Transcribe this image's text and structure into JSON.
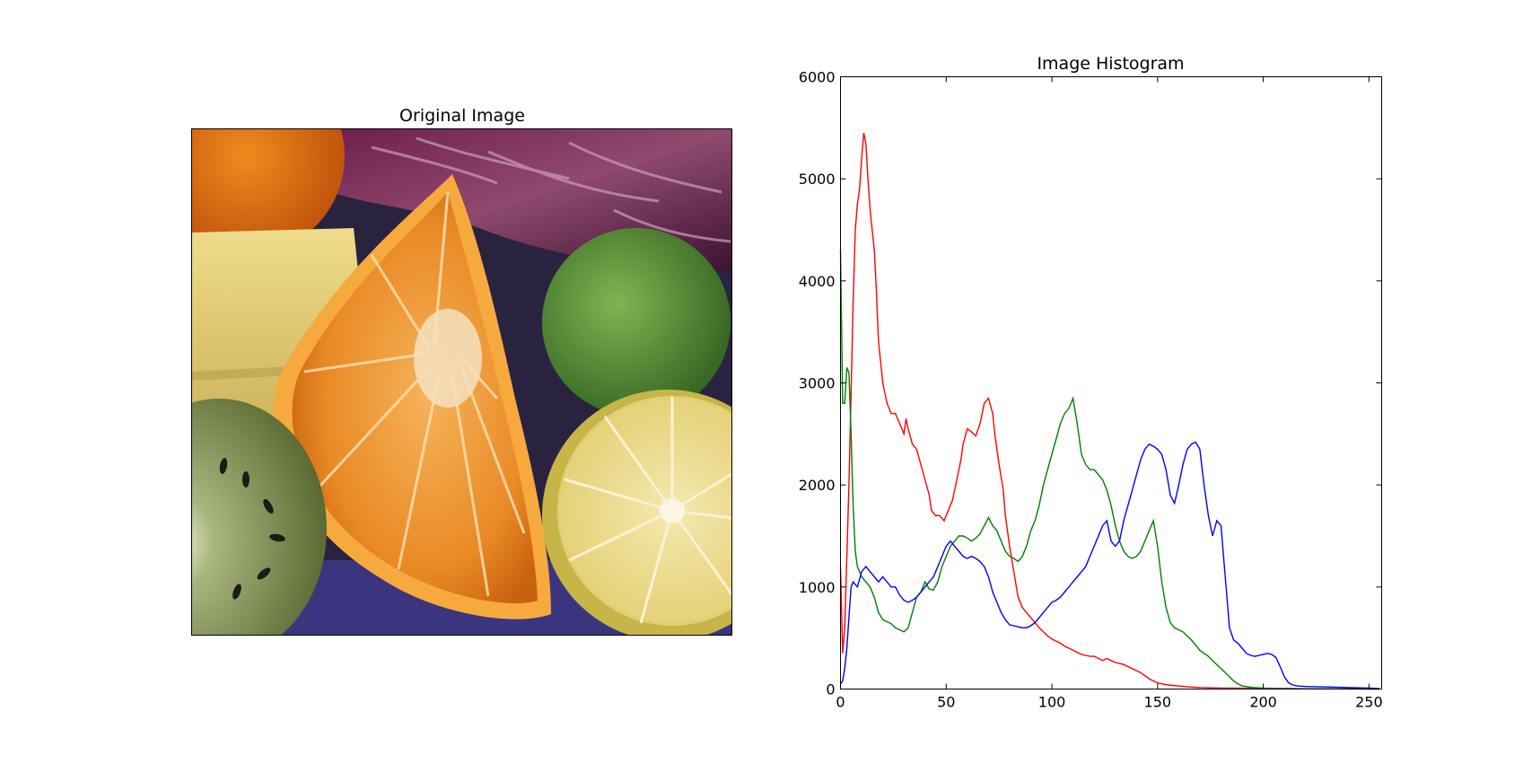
{
  "figure": {
    "image_panel": {
      "title": "Original Image",
      "content": "photograph of cut orange, lemon, lime, kiwi, banana and red cabbage"
    }
  },
  "chart_data": {
    "type": "line",
    "title": "Image Histogram",
    "xlabel": "",
    "ylabel": "",
    "xlim": [
      0,
      256
    ],
    "ylim": [
      0,
      6000
    ],
    "x_ticks": [
      "0",
      "50",
      "100",
      "150",
      "200",
      "250"
    ],
    "y_ticks": [
      "0",
      "1000",
      "2000",
      "3000",
      "4000",
      "5000",
      "6000"
    ],
    "grid": false,
    "series": [
      {
        "color": "#ff0000",
        "points": [
          [
            0,
            1200
          ],
          [
            1,
            350
          ],
          [
            2,
            600
          ],
          [
            3,
            1300
          ],
          [
            4,
            2000
          ],
          [
            5,
            2900
          ],
          [
            6,
            3800
          ],
          [
            7,
            4500
          ],
          [
            8,
            4750
          ],
          [
            9,
            4900
          ],
          [
            10,
            5200
          ],
          [
            11,
            5450
          ],
          [
            12,
            5350
          ],
          [
            13,
            5000
          ],
          [
            14,
            4700
          ],
          [
            15,
            4500
          ],
          [
            16,
            4300
          ],
          [
            17,
            3900
          ],
          [
            18,
            3400
          ],
          [
            19,
            3200
          ],
          [
            20,
            3000
          ],
          [
            22,
            2800
          ],
          [
            24,
            2700
          ],
          [
            26,
            2700
          ],
          [
            28,
            2600
          ],
          [
            30,
            2500
          ],
          [
            31,
            2650
          ],
          [
            32,
            2550
          ],
          [
            34,
            2400
          ],
          [
            36,
            2350
          ],
          [
            38,
            2200
          ],
          [
            40,
            2050
          ],
          [
            42,
            1900
          ],
          [
            43,
            1750
          ],
          [
            45,
            1700
          ],
          [
            47,
            1700
          ],
          [
            49,
            1650
          ],
          [
            51,
            1750
          ],
          [
            53,
            1850
          ],
          [
            55,
            2050
          ],
          [
            57,
            2250
          ],
          [
            58,
            2400
          ],
          [
            60,
            2550
          ],
          [
            62,
            2520
          ],
          [
            64,
            2480
          ],
          [
            66,
            2600
          ],
          [
            68,
            2800
          ],
          [
            70,
            2850
          ],
          [
            72,
            2700
          ],
          [
            73,
            2500
          ],
          [
            75,
            2200
          ],
          [
            77,
            1950
          ],
          [
            78,
            1700
          ],
          [
            80,
            1400
          ],
          [
            82,
            1150
          ],
          [
            84,
            900
          ],
          [
            86,
            800
          ],
          [
            88,
            750
          ],
          [
            90,
            700
          ],
          [
            92,
            650
          ],
          [
            94,
            600
          ],
          [
            96,
            560
          ],
          [
            98,
            520
          ],
          [
            100,
            490
          ],
          [
            102,
            470
          ],
          [
            104,
            450
          ],
          [
            106,
            420
          ],
          [
            108,
            400
          ],
          [
            110,
            380
          ],
          [
            112,
            360
          ],
          [
            114,
            340
          ],
          [
            116,
            330
          ],
          [
            118,
            320
          ],
          [
            120,
            320
          ],
          [
            122,
            300
          ],
          [
            124,
            280
          ],
          [
            126,
            300
          ],
          [
            128,
            280
          ],
          [
            130,
            260
          ],
          [
            132,
            250
          ],
          [
            134,
            240
          ],
          [
            136,
            220
          ],
          [
            138,
            200
          ],
          [
            140,
            180
          ],
          [
            142,
            160
          ],
          [
            144,
            130
          ],
          [
            146,
            100
          ],
          [
            148,
            80
          ],
          [
            150,
            60
          ],
          [
            152,
            50
          ],
          [
            155,
            40
          ],
          [
            160,
            30
          ],
          [
            165,
            20
          ],
          [
            170,
            15
          ],
          [
            180,
            10
          ],
          [
            190,
            8
          ],
          [
            200,
            5
          ],
          [
            210,
            5
          ],
          [
            220,
            3
          ],
          [
            230,
            3
          ],
          [
            240,
            2
          ],
          [
            255,
            0
          ]
        ]
      },
      {
        "color": "#007f00",
        "points": [
          [
            0,
            4300
          ],
          [
            1,
            2800
          ],
          [
            2,
            2800
          ],
          [
            3,
            3150
          ],
          [
            4,
            3100
          ],
          [
            5,
            2500
          ],
          [
            6,
            1800
          ],
          [
            7,
            1350
          ],
          [
            8,
            1200
          ],
          [
            10,
            1100
          ],
          [
            12,
            1050
          ],
          [
            14,
            1000
          ],
          [
            16,
            900
          ],
          [
            18,
            750
          ],
          [
            20,
            680
          ],
          [
            22,
            660
          ],
          [
            24,
            640
          ],
          [
            26,
            600
          ],
          [
            28,
            580
          ],
          [
            30,
            560
          ],
          [
            32,
            600
          ],
          [
            34,
            750
          ],
          [
            36,
            900
          ],
          [
            38,
            950
          ],
          [
            40,
            1050
          ],
          [
            42,
            980
          ],
          [
            44,
            970
          ],
          [
            46,
            1050
          ],
          [
            48,
            1200
          ],
          [
            50,
            1300
          ],
          [
            52,
            1400
          ],
          [
            54,
            1450
          ],
          [
            56,
            1500
          ],
          [
            58,
            1500
          ],
          [
            60,
            1480
          ],
          [
            62,
            1450
          ],
          [
            64,
            1480
          ],
          [
            66,
            1520
          ],
          [
            68,
            1600
          ],
          [
            70,
            1680
          ],
          [
            72,
            1600
          ],
          [
            74,
            1550
          ],
          [
            76,
            1450
          ],
          [
            78,
            1350
          ],
          [
            80,
            1300
          ],
          [
            82,
            1280
          ],
          [
            84,
            1250
          ],
          [
            86,
            1300
          ],
          [
            88,
            1400
          ],
          [
            90,
            1550
          ],
          [
            92,
            1650
          ],
          [
            94,
            1800
          ],
          [
            96,
            2000
          ],
          [
            98,
            2150
          ],
          [
            100,
            2300
          ],
          [
            102,
            2450
          ],
          [
            104,
            2600
          ],
          [
            106,
            2700
          ],
          [
            108,
            2750
          ],
          [
            110,
            2850
          ],
          [
            112,
            2600
          ],
          [
            114,
            2300
          ],
          [
            116,
            2200
          ],
          [
            118,
            2150
          ],
          [
            120,
            2150
          ],
          [
            122,
            2100
          ],
          [
            124,
            2050
          ],
          [
            126,
            1950
          ],
          [
            128,
            1800
          ],
          [
            130,
            1600
          ],
          [
            132,
            1450
          ],
          [
            134,
            1350
          ],
          [
            136,
            1300
          ],
          [
            138,
            1280
          ],
          [
            140,
            1300
          ],
          [
            142,
            1350
          ],
          [
            144,
            1450
          ],
          [
            146,
            1550
          ],
          [
            148,
            1650
          ],
          [
            150,
            1400
          ],
          [
            152,
            1050
          ],
          [
            154,
            800
          ],
          [
            156,
            650
          ],
          [
            158,
            600
          ],
          [
            160,
            580
          ],
          [
            162,
            560
          ],
          [
            164,
            520
          ],
          [
            166,
            480
          ],
          [
            168,
            430
          ],
          [
            170,
            380
          ],
          [
            172,
            350
          ],
          [
            174,
            320
          ],
          [
            176,
            280
          ],
          [
            178,
            240
          ],
          [
            180,
            200
          ],
          [
            182,
            160
          ],
          [
            184,
            120
          ],
          [
            186,
            80
          ],
          [
            188,
            50
          ],
          [
            190,
            30
          ],
          [
            195,
            15
          ],
          [
            200,
            10
          ],
          [
            210,
            5
          ],
          [
            220,
            3
          ],
          [
            240,
            2
          ],
          [
            255,
            0
          ]
        ]
      },
      {
        "color": "#0000ff",
        "points": [
          [
            0,
            50
          ],
          [
            1,
            80
          ],
          [
            2,
            200
          ],
          [
            3,
            400
          ],
          [
            4,
            700
          ],
          [
            5,
            1000
          ],
          [
            6,
            1050
          ],
          [
            8,
            1000
          ],
          [
            10,
            1150
          ],
          [
            12,
            1200
          ],
          [
            14,
            1150
          ],
          [
            16,
            1100
          ],
          [
            18,
            1050
          ],
          [
            20,
            1100
          ],
          [
            22,
            1050
          ],
          [
            24,
            1000
          ],
          [
            26,
            1000
          ],
          [
            28,
            920
          ],
          [
            30,
            870
          ],
          [
            32,
            850
          ],
          [
            34,
            870
          ],
          [
            36,
            900
          ],
          [
            38,
            950
          ],
          [
            40,
            1000
          ],
          [
            42,
            1050
          ],
          [
            44,
            1100
          ],
          [
            46,
            1200
          ],
          [
            48,
            1300
          ],
          [
            50,
            1400
          ],
          [
            52,
            1450
          ],
          [
            54,
            1400
          ],
          [
            56,
            1350
          ],
          [
            58,
            1300
          ],
          [
            60,
            1280
          ],
          [
            62,
            1300
          ],
          [
            64,
            1280
          ],
          [
            66,
            1250
          ],
          [
            68,
            1200
          ],
          [
            70,
            1100
          ],
          [
            72,
            950
          ],
          [
            74,
            850
          ],
          [
            76,
            750
          ],
          [
            78,
            680
          ],
          [
            80,
            630
          ],
          [
            82,
            620
          ],
          [
            84,
            610
          ],
          [
            86,
            600
          ],
          [
            88,
            600
          ],
          [
            90,
            620
          ],
          [
            92,
            650
          ],
          [
            94,
            700
          ],
          [
            96,
            750
          ],
          [
            98,
            800
          ],
          [
            100,
            850
          ],
          [
            102,
            870
          ],
          [
            104,
            900
          ],
          [
            106,
            950
          ],
          [
            108,
            1000
          ],
          [
            110,
            1050
          ],
          [
            112,
            1100
          ],
          [
            114,
            1150
          ],
          [
            116,
            1200
          ],
          [
            118,
            1300
          ],
          [
            120,
            1400
          ],
          [
            122,
            1500
          ],
          [
            124,
            1600
          ],
          [
            126,
            1650
          ],
          [
            128,
            1450
          ],
          [
            130,
            1400
          ],
          [
            132,
            1450
          ],
          [
            134,
            1650
          ],
          [
            136,
            1800
          ],
          [
            138,
            1950
          ],
          [
            140,
            2100
          ],
          [
            142,
            2250
          ],
          [
            144,
            2350
          ],
          [
            146,
            2400
          ],
          [
            148,
            2380
          ],
          [
            150,
            2350
          ],
          [
            152,
            2300
          ],
          [
            154,
            2150
          ],
          [
            156,
            1900
          ],
          [
            158,
            1820
          ],
          [
            160,
            2000
          ],
          [
            162,
            2200
          ],
          [
            164,
            2350
          ],
          [
            166,
            2400
          ],
          [
            168,
            2420
          ],
          [
            170,
            2350
          ],
          [
            172,
            2000
          ],
          [
            174,
            1700
          ],
          [
            176,
            1500
          ],
          [
            178,
            1650
          ],
          [
            180,
            1600
          ],
          [
            182,
            1100
          ],
          [
            184,
            600
          ],
          [
            186,
            480
          ],
          [
            188,
            450
          ],
          [
            190,
            400
          ],
          [
            192,
            350
          ],
          [
            194,
            330
          ],
          [
            196,
            320
          ],
          [
            198,
            330
          ],
          [
            200,
            340
          ],
          [
            202,
            350
          ],
          [
            204,
            340
          ],
          [
            206,
            310
          ],
          [
            208,
            220
          ],
          [
            210,
            120
          ],
          [
            212,
            60
          ],
          [
            214,
            40
          ],
          [
            216,
            30
          ],
          [
            220,
            25
          ],
          [
            230,
            20
          ],
          [
            240,
            15
          ],
          [
            250,
            10
          ],
          [
            255,
            5
          ]
        ]
      }
    ]
  }
}
